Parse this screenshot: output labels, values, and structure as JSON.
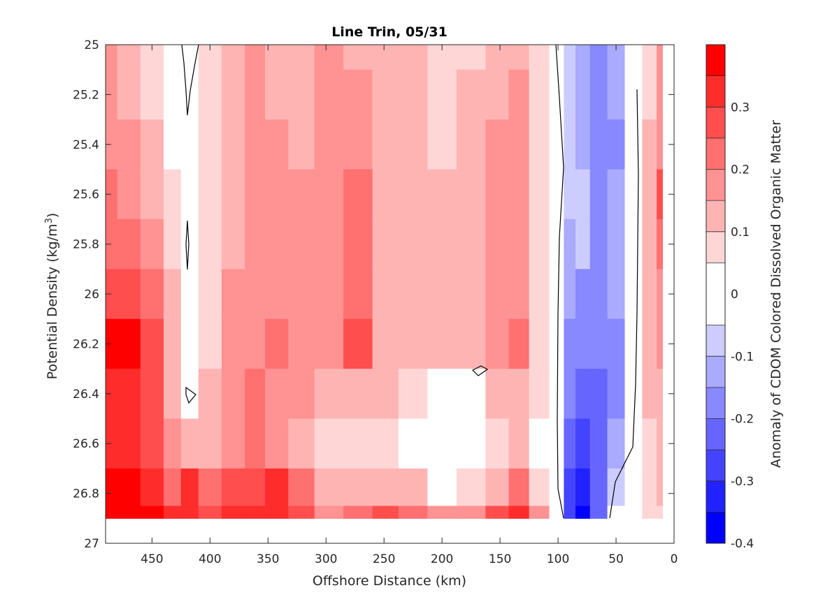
{
  "chart_data": {
    "type": "heatmap",
    "title": "Line Trin, 05/31",
    "xlabel": "Offshore Distance (km)",
    "ylabel": "Potential Density (kg/m",
    "ylabel_sup": "3",
    "ylabel_close": ")",
    "colorbar_label": "Anomaly of CDOM Colored Dissolved Organic Matter",
    "xlim": [
      490,
      0
    ],
    "x_reversed": true,
    "ylim": [
      25,
      27
    ],
    "y_reversed": true,
    "x_ticks": [
      450,
      400,
      350,
      300,
      250,
      200,
      150,
      100,
      50,
      0
    ],
    "y_ticks": [
      25,
      25.2,
      25.4,
      25.6,
      25.8,
      26,
      26.2,
      26.4,
      26.6,
      26.8,
      27
    ],
    "y_tick_labels": [
      "25",
      "25.2",
      "25.4",
      "25.6",
      "25.8",
      "26",
      "26.2",
      "26.4",
      "26.6",
      "26.8",
      "27"
    ],
    "colorbar_range": [
      -0.4,
      0.4
    ],
    "colorbar_ticks": [
      0.3,
      0.2,
      0.1,
      0,
      -0.1,
      -0.2,
      -0.3,
      -0.4
    ],
    "colorbar_tick_labels": [
      "0.3",
      "0.2",
      "0.1",
      "0",
      "-0.1",
      "-0.2",
      "-0.3",
      "-0.4"
    ],
    "levels": [
      -0.4,
      -0.35,
      -0.3,
      -0.25,
      -0.2,
      -0.15,
      -0.1,
      -0.05,
      0.05,
      0.1,
      0.15,
      0.2,
      0.25,
      0.3,
      0.35,
      0.4
    ],
    "colors": [
      "#0000ff",
      "#2222ff",
      "#4444ff",
      "#6666ff",
      "#8888ff",
      "#aaaaff",
      "#ccccff",
      "#ffffff",
      "#ffd6d6",
      "#ffb4b4",
      "#ff9292",
      "#ff7070",
      "#ff4e4e",
      "#ff2c2c",
      "#ff0000"
    ],
    "colormap": "blue-white-red diverging",
    "grid": false,
    "data_extent": {
      "x": [
        490,
        10
      ],
      "y": [
        25,
        26.9
      ]
    },
    "columns": [
      {
        "x": 490,
        "values": [
          0.17,
          0.17,
          0.18,
          0.2,
          0.22,
          0.26,
          0.37,
          0.3,
          0.3,
          0.36,
          0.4
        ]
      },
      {
        "x": 470,
        "values": [
          0.13,
          0.13,
          0.15,
          0.18,
          0.22,
          0.28,
          0.37,
          0.3,
          0.3,
          0.36,
          0.4
        ]
      },
      {
        "x": 450,
        "values": [
          0.08,
          0.09,
          0.1,
          0.12,
          0.16,
          0.22,
          0.28,
          0.27,
          0.28,
          0.33,
          0.37
        ]
      },
      {
        "x": 430,
        "values": [
          0.02,
          0.03,
          0.04,
          0.06,
          0.08,
          0.12,
          0.14,
          0.14,
          0.18,
          0.24,
          0.3
        ]
      },
      {
        "x": 420,
        "values": [
          -0.01,
          -0.01,
          0.0,
          0.0,
          -0.01,
          0.02,
          0.04,
          0.02,
          0.12,
          0.3,
          0.3
        ]
      },
      {
        "x": 400,
        "values": [
          0.05,
          0.05,
          0.06,
          0.06,
          0.06,
          0.08,
          0.09,
          0.1,
          0.12,
          0.22,
          0.25
        ]
      },
      {
        "x": 380,
        "values": [
          0.12,
          0.12,
          0.14,
          0.14,
          0.14,
          0.16,
          0.17,
          0.18,
          0.18,
          0.26,
          0.3
        ]
      },
      {
        "x": 360,
        "values": [
          0.15,
          0.15,
          0.16,
          0.16,
          0.16,
          0.18,
          0.19,
          0.2,
          0.2,
          0.28,
          0.32
        ]
      },
      {
        "x": 345,
        "values": [
          0.13,
          0.13,
          0.15,
          0.16,
          0.16,
          0.18,
          0.2,
          0.18,
          0.18,
          0.32,
          0.34
        ]
      },
      {
        "x": 320,
        "values": [
          0.12,
          0.14,
          0.14,
          0.15,
          0.16,
          0.17,
          0.18,
          0.15,
          0.12,
          0.22,
          0.26
        ]
      },
      {
        "x": 300,
        "values": [
          0.15,
          0.16,
          0.17,
          0.17,
          0.18,
          0.18,
          0.17,
          0.12,
          0.08,
          0.14,
          0.18
        ]
      },
      {
        "x": 270,
        "values": [
          0.14,
          0.17,
          0.18,
          0.2,
          0.2,
          0.22,
          0.28,
          0.14,
          0.06,
          0.12,
          0.22
        ]
      },
      {
        "x": 250,
        "values": [
          0.14,
          0.14,
          0.13,
          0.12,
          0.12,
          0.14,
          0.14,
          0.1,
          0.06,
          0.12,
          0.28
        ]
      },
      {
        "x": 225,
        "values": [
          0.12,
          0.12,
          0.12,
          0.12,
          0.12,
          0.14,
          0.12,
          0.06,
          0.04,
          0.1,
          0.2
        ]
      },
      {
        "x": 200,
        "values": [
          0.08,
          0.08,
          0.08,
          0.1,
          0.1,
          0.12,
          0.1,
          0.04,
          0.02,
          0.04,
          0.16
        ]
      },
      {
        "x": 175,
        "values": [
          0.08,
          0.1,
          0.1,
          0.12,
          0.1,
          0.12,
          0.1,
          0.04,
          0.02,
          0.06,
          0.16
        ]
      },
      {
        "x": 150,
        "values": [
          0.12,
          0.14,
          0.16,
          0.17,
          0.17,
          0.18,
          0.18,
          0.12,
          0.08,
          0.14,
          0.26
        ]
      },
      {
        "x": 135,
        "values": [
          0.14,
          0.15,
          0.16,
          0.18,
          0.18,
          0.18,
          0.2,
          0.14,
          0.12,
          0.22,
          0.3
        ]
      },
      {
        "x": 115,
        "values": [
          0.06,
          0.06,
          0.06,
          0.07,
          0.07,
          0.08,
          0.08,
          0.06,
          0.04,
          0.08,
          0.18
        ]
      },
      {
        "x": 100,
        "values": [
          0.03,
          0.03,
          0.02,
          0.02,
          0.02,
          0.02,
          0.02,
          0.02,
          0.02,
          0.02,
          0.02
        ]
      },
      {
        "x": 90,
        "values": [
          -0.08,
          -0.08,
          -0.1,
          -0.1,
          -0.12,
          -0.14,
          -0.16,
          -0.18,
          -0.22,
          -0.26,
          -0.3
        ]
      },
      {
        "x": 80,
        "values": [
          -0.12,
          -0.12,
          -0.12,
          -0.08,
          -0.1,
          -0.16,
          -0.2,
          -0.24,
          -0.28,
          -0.34,
          -0.38
        ]
      },
      {
        "x": 65,
        "values": [
          -0.18,
          -0.2,
          -0.2,
          -0.2,
          -0.2,
          -0.2,
          -0.2,
          -0.22,
          -0.22,
          -0.22,
          -0.22
        ]
      },
      {
        "x": 50,
        "values": [
          -0.12,
          -0.14,
          -0.16,
          -0.14,
          -0.14,
          -0.14,
          -0.16,
          -0.18,
          -0.14,
          -0.1,
          -0.05
        ]
      },
      {
        "x": 35,
        "values": [
          -0.03,
          -0.03,
          -0.02,
          -0.02,
          -0.02,
          -0.02,
          -0.02,
          -0.02,
          -0.02,
          0.02,
          0.04
        ]
      },
      {
        "x": 20,
        "values": [
          0.08,
          0.08,
          0.1,
          0.14,
          0.1,
          0.1,
          0.12,
          0.1,
          0.08,
          0.06,
          0.06
        ]
      },
      {
        "x": 10,
        "values": [
          0.16,
          0.16,
          0.18,
          0.25,
          0.2,
          0.16,
          0.18,
          0.14,
          0.12,
          0.1,
          0.08
        ]
      }
    ],
    "column_y": [
      25,
      25.2,
      25.4,
      25.6,
      25.8,
      26,
      26.2,
      26.4,
      26.6,
      26.8,
      26.9
    ]
  }
}
